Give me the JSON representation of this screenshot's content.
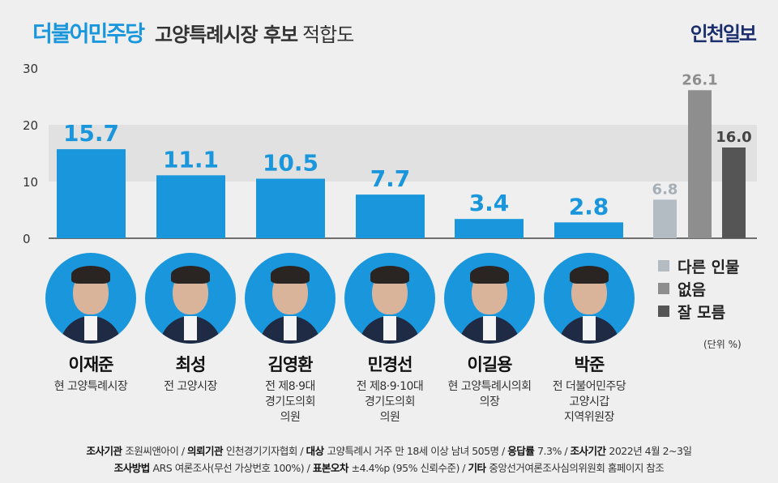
{
  "header": {
    "party": "더불어민주당",
    "title_main": "고양특례시장 후보",
    "title_sub": "적합도",
    "brand": "인천일보"
  },
  "colors": {
    "candidate_bar": "#1a97dc",
    "other": "#b4bcc3",
    "none": "#8e8e8e",
    "dont_know": "#555555"
  },
  "chart_data": {
    "type": "bar",
    "categories": [
      "이재준",
      "최성",
      "김영환",
      "민경선",
      "이길용",
      "박준",
      "다른 인물",
      "없음",
      "잘 모름"
    ],
    "values": [
      15.7,
      11.1,
      10.5,
      7.7,
      3.4,
      2.8,
      6.8,
      26.1,
      16.0
    ],
    "value_labels": [
      "15.7",
      "11.1",
      "10.5",
      "7.7",
      "3.4",
      "2.8",
      "6.8",
      "26.1",
      "16.0"
    ],
    "yticks": [
      "30",
      "20",
      "10",
      "0"
    ],
    "ylim": [
      0,
      30
    ],
    "grid": false,
    "legend_position": "right",
    "legend": [
      "다른 인물",
      "없음",
      "잘 모름"
    ],
    "unit": "(단위 %)"
  },
  "candidates": [
    {
      "name": "이재준",
      "role": "현 고양특례시장"
    },
    {
      "name": "최성",
      "role": "전 고양시장"
    },
    {
      "name": "김영환",
      "role": "전 제8·9대\n경기도의회\n의원"
    },
    {
      "name": "민경선",
      "role": "전 제8·9·10대\n경기도의회\n의원"
    },
    {
      "name": "이길용",
      "role": "현 고양특례시의회\n의장"
    },
    {
      "name": "박준",
      "role": "전 더불어민주당\n고양시갑\n지역위원장"
    }
  ],
  "footer": {
    "line1": [
      {
        "label": "조사기관",
        "value": "조원씨앤아이"
      },
      {
        "label": "의뢰기관",
        "value": "인천경기기자협회"
      },
      {
        "label": "대상",
        "value": "고양특례시 거주 만 18세 이상 남녀 505명"
      },
      {
        "label": "응답률",
        "value": "7.3%"
      },
      {
        "label": "조사기간",
        "value": "2022년 4월 2~3일"
      }
    ],
    "line2": [
      {
        "label": "조사방법",
        "value": "ARS 여론조사(무선 가상번호 100%)"
      },
      {
        "label": "표본오차",
        "value": "±4.4%p (95% 신뢰수준)"
      },
      {
        "label": "기타",
        "value": "중앙선거여론조사심의위원회 홈페이지 참조"
      }
    ]
  }
}
